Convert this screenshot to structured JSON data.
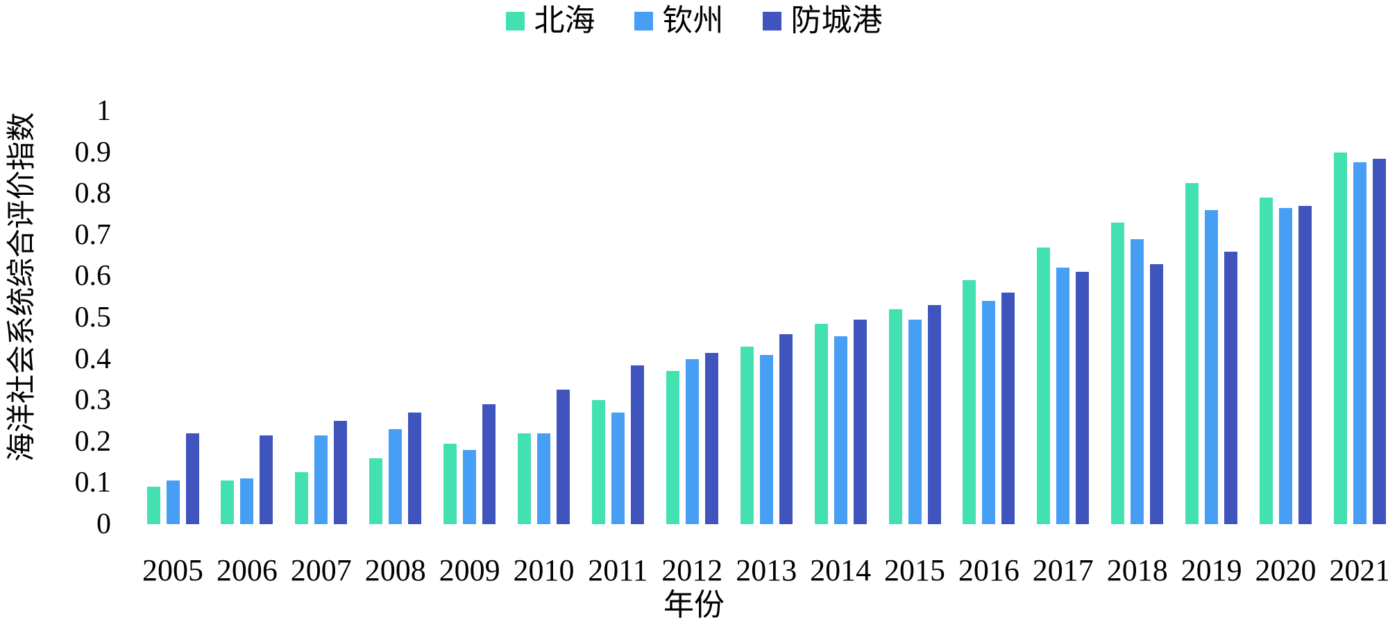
{
  "legend": {
    "items": [
      {
        "label": "北海",
        "color": "#43E0B2"
      },
      {
        "label": "钦州",
        "color": "#479EF5"
      },
      {
        "label": "防城港",
        "color": "#4054BE"
      }
    ]
  },
  "y_axis": {
    "title": "海洋社会系统综合评价指数",
    "tick_labels": [
      "0",
      "0.1",
      "0.2",
      "0.3",
      "0.4",
      "0.5",
      "0.6",
      "0.7",
      "0.8",
      "0.9",
      "1"
    ]
  },
  "x_axis": {
    "title": "年份"
  },
  "chart_data": {
    "type": "bar",
    "title": "",
    "xlabel": "年份",
    "ylabel": "海洋社会系统综合评价指数",
    "ylim": [
      0,
      1
    ],
    "yticks": [
      0,
      0.1,
      0.2,
      0.3,
      0.4,
      0.5,
      0.6,
      0.7,
      0.8,
      0.9,
      1
    ],
    "grid": false,
    "legend_position": "top-center",
    "categories": [
      "2005",
      "2006",
      "2007",
      "2008",
      "2009",
      "2010",
      "2011",
      "2012",
      "2013",
      "2014",
      "2015",
      "2016",
      "2017",
      "2018",
      "2019",
      "2020",
      "2021"
    ],
    "series": [
      {
        "name": "北海",
        "color": "#43E0B2",
        "values": [
          0.09,
          0.105,
          0.125,
          0.16,
          0.195,
          0.22,
          0.3,
          0.37,
          0.43,
          0.485,
          0.52,
          0.59,
          0.67,
          0.73,
          0.825,
          0.79,
          0.9
        ]
      },
      {
        "name": "钦州",
        "color": "#479EF5",
        "values": [
          0.105,
          0.11,
          0.215,
          0.23,
          0.18,
          0.22,
          0.27,
          0.4,
          0.41,
          0.455,
          0.495,
          0.54,
          0.62,
          0.69,
          0.76,
          0.765,
          0.875
        ]
      },
      {
        "name": "防城港",
        "color": "#4054BE",
        "values": [
          0.22,
          0.215,
          0.25,
          0.27,
          0.29,
          0.325,
          0.385,
          0.415,
          0.46,
          0.495,
          0.53,
          0.56,
          0.61,
          0.63,
          0.66,
          0.77,
          0.885
        ]
      }
    ]
  }
}
